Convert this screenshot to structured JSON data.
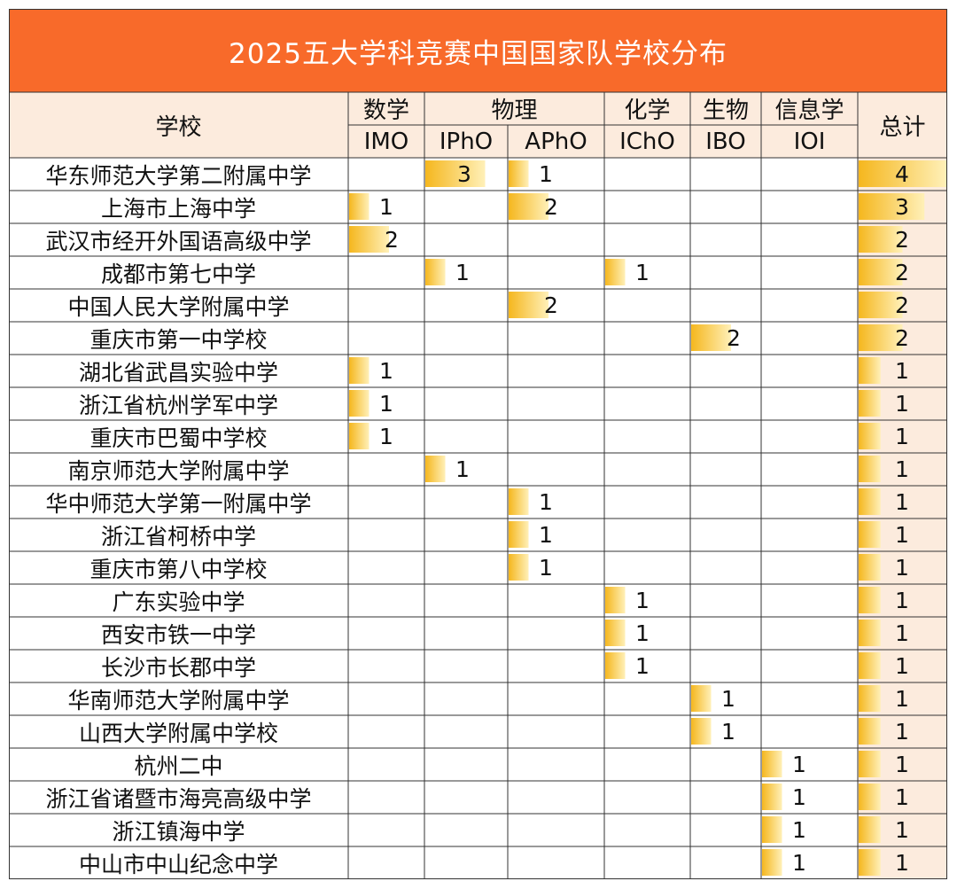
{
  "colors": {
    "title_bg": "#F86A2A",
    "header_bg": "#FCEBDD",
    "total_bg": "#FCEBDD",
    "bar_light": "#FFF0B8",
    "bar_dark": "#F5B71E",
    "grid_line": "#333333"
  },
  "chart_data": {
    "type": "table",
    "title": "2025五大学科竞赛中国国家队学校分布",
    "school_header": "学校",
    "total_header": "总计",
    "subject_groups": [
      {
        "name": "数学",
        "span": 1
      },
      {
        "name": "物理",
        "span": 2
      },
      {
        "name": "化学",
        "span": 1
      },
      {
        "name": "生物",
        "span": 1
      },
      {
        "name": "信息学",
        "span": 1
      }
    ],
    "columns": [
      "IMO",
      "IPhO",
      "APhO",
      "IChO",
      "IBO",
      "IOI"
    ],
    "rows": [
      {
        "school": "华东师范大学第二附属中学",
        "values": [
          null,
          3,
          1,
          null,
          null,
          null
        ],
        "total": 4
      },
      {
        "school": "上海市上海中学",
        "values": [
          1,
          null,
          2,
          null,
          null,
          null
        ],
        "total": 3
      },
      {
        "school": "武汉市经开外国语高级中学",
        "values": [
          2,
          null,
          null,
          null,
          null,
          null
        ],
        "total": 2
      },
      {
        "school": "成都市第七中学",
        "values": [
          null,
          1,
          null,
          1,
          null,
          null
        ],
        "total": 2
      },
      {
        "school": "中国人民大学附属中学",
        "values": [
          null,
          null,
          2,
          null,
          null,
          null
        ],
        "total": 2
      },
      {
        "school": "重庆市第一中学校",
        "values": [
          null,
          null,
          null,
          null,
          2,
          null
        ],
        "total": 2
      },
      {
        "school": "湖北省武昌实验中学",
        "values": [
          1,
          null,
          null,
          null,
          null,
          null
        ],
        "total": 1
      },
      {
        "school": "浙江省杭州学军中学",
        "values": [
          1,
          null,
          null,
          null,
          null,
          null
        ],
        "total": 1
      },
      {
        "school": "重庆市巴蜀中学校",
        "values": [
          1,
          null,
          null,
          null,
          null,
          null
        ],
        "total": 1
      },
      {
        "school": "南京师范大学附属中学",
        "values": [
          null,
          1,
          null,
          null,
          null,
          null
        ],
        "total": 1
      },
      {
        "school": "华中师范大学第一附属中学",
        "values": [
          null,
          null,
          1,
          null,
          null,
          null
        ],
        "total": 1
      },
      {
        "school": "浙江省柯桥中学",
        "values": [
          null,
          null,
          1,
          null,
          null,
          null
        ],
        "total": 1
      },
      {
        "school": "重庆市第八中学校",
        "values": [
          null,
          null,
          1,
          null,
          null,
          null
        ],
        "total": 1
      },
      {
        "school": "广东实验中学",
        "values": [
          null,
          null,
          null,
          1,
          null,
          null
        ],
        "total": 1
      },
      {
        "school": "西安市铁一中学",
        "values": [
          null,
          null,
          null,
          1,
          null,
          null
        ],
        "total": 1
      },
      {
        "school": "长沙市长郡中学",
        "values": [
          null,
          null,
          null,
          1,
          null,
          null
        ],
        "total": 1
      },
      {
        "school": "华南师范大学附属中学",
        "values": [
          null,
          null,
          null,
          null,
          1,
          null
        ],
        "total": 1
      },
      {
        "school": "山西大学附属中学校",
        "values": [
          null,
          null,
          null,
          null,
          1,
          null
        ],
        "total": 1
      },
      {
        "school": "杭州二中",
        "values": [
          null,
          null,
          null,
          null,
          null,
          1
        ],
        "total": 1
      },
      {
        "school": "浙江省诸暨市海亮高级中学",
        "values": [
          null,
          null,
          null,
          null,
          null,
          1
        ],
        "total": 1
      },
      {
        "school": "浙江镇海中学",
        "values": [
          null,
          null,
          null,
          null,
          null,
          1
        ],
        "total": 1
      },
      {
        "school": "中山市中山纪念中学",
        "values": [
          null,
          null,
          null,
          null,
          null,
          1
        ],
        "total": 1
      }
    ]
  }
}
